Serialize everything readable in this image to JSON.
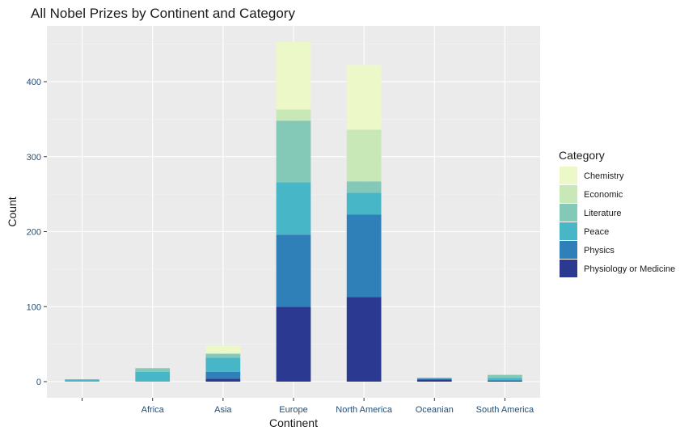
{
  "chart_data": {
    "type": "bar",
    "stacked": true,
    "title": "All Nobel Prizes by Continent and Category",
    "xlabel": "Continent",
    "ylabel": "Count",
    "ylim": [
      0,
      460
    ],
    "yticks": [
      0,
      100,
      200,
      300,
      400
    ],
    "grid": true,
    "legend_position": "right",
    "legend_title": "Category",
    "categories": [
      "",
      "Africa",
      "Asia",
      "Europe",
      "North America",
      "Oceanian",
      "South America"
    ],
    "series": [
      {
        "name": "Physiology or Medicine",
        "color": "#2b3990",
        "values": [
          0,
          0,
          4,
          100,
          113,
          3,
          1
        ]
      },
      {
        "name": "Physics",
        "color": "#2f80b8",
        "values": [
          0,
          0,
          9,
          96,
          110,
          1,
          1
        ]
      },
      {
        "name": "Peace",
        "color": "#47b6c6",
        "values": [
          3,
          13,
          19,
          70,
          29,
          1,
          3
        ]
      },
      {
        "name": "Literature",
        "color": "#84c8b7",
        "values": [
          0,
          5,
          5,
          82,
          15,
          0,
          4
        ]
      },
      {
        "name": "Economic",
        "color": "#c9e8b8",
        "values": [
          0,
          0,
          1,
          15,
          69,
          0,
          0
        ]
      },
      {
        "name": "Chemistry",
        "color": "#edf8c8",
        "values": [
          0,
          0,
          10,
          90,
          86,
          0,
          0
        ]
      }
    ],
    "legend_order": [
      "Chemistry",
      "Economic",
      "Literature",
      "Peace",
      "Physics",
      "Physiology or Medicine"
    ]
  }
}
